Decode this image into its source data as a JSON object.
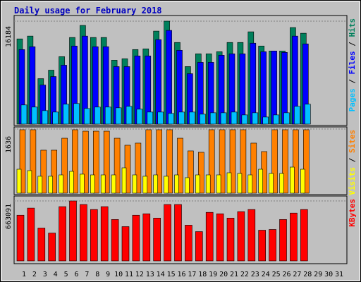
{
  "chart_data": {
    "type": "bar",
    "title": "Daily usage for February 2018",
    "separator": " / ",
    "categories": [
      1,
      2,
      3,
      4,
      5,
      6,
      7,
      8,
      9,
      10,
      11,
      12,
      13,
      14,
      15,
      16,
      17,
      18,
      19,
      20,
      21,
      22,
      23,
      24,
      25,
      26,
      27,
      28,
      29,
      30,
      31
    ],
    "category_colors": [
      "#000",
      "#000",
      "#00805c",
      "#00805c",
      "#000",
      "#000",
      "#000",
      "#000",
      "#000",
      "#00805c",
      "#00805c",
      "#000",
      "#000",
      "#000",
      "#000",
      "#000",
      "#00805c",
      "#00805c",
      "#000",
      "#000",
      "#000",
      "#000",
      "#000",
      "#00805c",
      "#00805c",
      "#000",
      "#000",
      "#000",
      "#000",
      "#000",
      "#00805c"
    ],
    "panels": [
      {
        "ylim": [
          0,
          16184
        ],
        "yticks": [
          16184
        ],
        "series": [
          {
            "name": "Hits",
            "color": "#00805c",
            "values": [
              13394,
              13840,
              7143,
              8483,
              10603,
              13617,
              15514,
              13617,
              13617,
              10045,
              10268,
              11720,
              11831,
              14621,
              16184,
              12836,
              9041,
              11050,
              11050,
              11385,
              12836,
              12836,
              14510,
              12278,
              11496,
              11496,
              15180,
              14287,
              null,
              null,
              null
            ]
          },
          {
            "name": "Files",
            "color": "#0000ff",
            "values": [
              11718,
              12164,
              6138,
              7477,
              9263,
              12276,
              13838,
              12164,
              12164,
              9040,
              9040,
              10714,
              10714,
              13280,
              14731,
              11606,
              7924,
              9709,
              9709,
              10825,
              11048,
              11048,
              12722,
              11383,
              11495,
              11272,
              13838,
              12611,
              null,
              null,
              null
            ]
          },
          {
            "name": "Pages",
            "color": "#00c0ff",
            "values": [
              3013,
              2678,
              2120,
              1897,
              3125,
              3236,
              2455,
              2678,
              2678,
              2567,
              2790,
              2344,
              1897,
              1897,
              1674,
              1897,
              1897,
              1562,
              1786,
              1786,
              1897,
              1451,
              1786,
              1116,
              1451,
              1786,
              2790,
              3125,
              null,
              null,
              null
            ]
          }
        ]
      },
      {
        "ylim": [
          0,
          1636
        ],
        "yticks": [
          1636
        ],
        "series": [
          {
            "name": "Sites",
            "color": "#ff8000",
            "values": [
              1618,
              1618,
              1097,
              1097,
              1402,
              1618,
              1582,
              1582,
              1582,
              1402,
              1223,
              1277,
              1618,
              1618,
              1618,
              1402,
              1079,
              1043,
              1618,
              1618,
              1618,
              1618,
              1277,
              1061,
              1618,
              1618,
              1618,
              1618,
              null,
              null,
              null
            ]
          },
          {
            "name": "Visits",
            "color": "#ffff00",
            "values": [
              611,
              575,
              432,
              432,
              467,
              557,
              486,
              467,
              467,
              467,
              647,
              467,
              432,
              467,
              432,
              467,
              396,
              467,
              467,
              467,
              521,
              503,
              467,
              611,
              503,
              503,
              665,
              611,
              null,
              null,
              null
            ]
          }
        ]
      },
      {
        "ylim": [
          0,
          663091
        ],
        "yticks": [
          663091
        ],
        "series": [
          {
            "name": "KBytes",
            "color": "#ff0000",
            "values": [
              505216,
              584156,
              363124,
              307866,
              599944,
              663091,
              623626,
              568368,
              599944,
              457852,
              378912,
              505216,
              521004,
              473640,
              623626,
              623626,
              394700,
              323654,
              536792,
              521004,
              473640,
              544686,
              568368,
              339442,
              347336,
              457852,
              528898,
              568368,
              null,
              null,
              null
            ]
          }
        ]
      }
    ]
  }
}
